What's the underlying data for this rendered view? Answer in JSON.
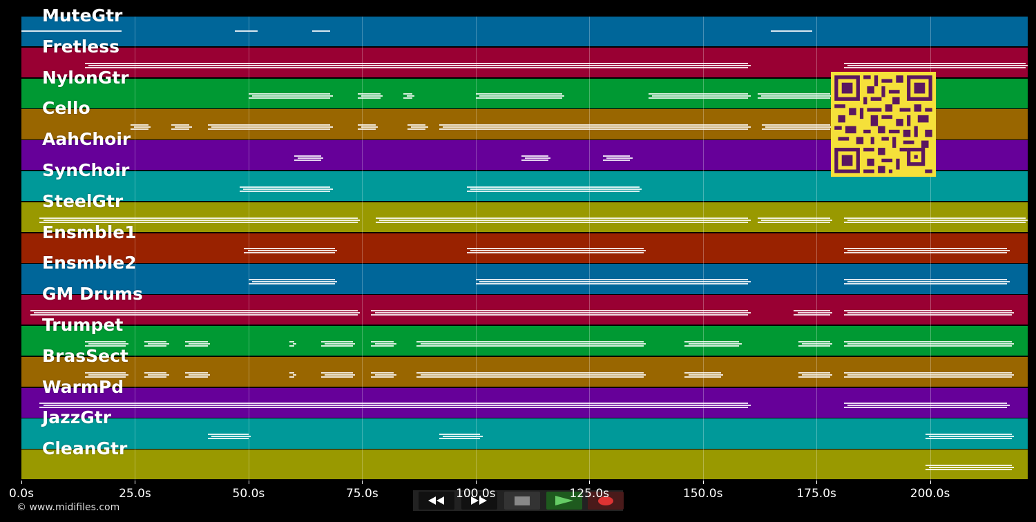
{
  "tracks": [
    {
      "name": "MuteGtr",
      "color": "#006699",
      "notes": [
        [
          0,
          22,
          "top"
        ],
        [
          47,
          52,
          "top"
        ],
        [
          64,
          68,
          "top"
        ],
        [
          165,
          174,
          "top"
        ]
      ]
    },
    {
      "name": "Fretless",
      "color": "#990033",
      "notes": [
        [
          14,
          160,
          "mid"
        ],
        [
          181,
          221,
          "mid"
        ]
      ]
    },
    {
      "name": "NylonGtr",
      "color": "#009933",
      "notes": [
        [
          50,
          68,
          "mid"
        ],
        [
          74,
          79,
          "mid"
        ],
        [
          84,
          86,
          "mid"
        ],
        [
          100,
          119,
          "mid"
        ],
        [
          138,
          160,
          "mid"
        ],
        [
          162,
          178,
          "mid"
        ]
      ]
    },
    {
      "name": "Cello",
      "color": "#996600",
      "notes": [
        [
          24,
          28,
          "mid"
        ],
        [
          33,
          37,
          "mid"
        ],
        [
          41,
          68,
          "mid"
        ],
        [
          74,
          78,
          "mid"
        ],
        [
          85,
          89,
          "mid"
        ],
        [
          92,
          160,
          "mid"
        ],
        [
          163,
          178,
          "mid"
        ]
      ]
    },
    {
      "name": "AahChoir",
      "color": "#660099",
      "notes": [
        [
          60,
          66,
          "mid"
        ],
        [
          110,
          116,
          "mid"
        ],
        [
          128,
          134,
          "mid"
        ]
      ]
    },
    {
      "name": "SynChoir",
      "color": "#009999",
      "notes": [
        [
          48,
          68,
          "mid"
        ],
        [
          98,
          136,
          "mid"
        ]
      ]
    },
    {
      "name": "SteelGtr",
      "color": "#999900",
      "notes": [
        [
          4,
          74,
          "mid"
        ],
        [
          78,
          160,
          "mid"
        ],
        [
          162,
          178,
          "mid"
        ],
        [
          181,
          221,
          "mid"
        ]
      ]
    },
    {
      "name": "Ensmble1",
      "color": "#992200",
      "notes": [
        [
          49,
          69,
          "mid"
        ],
        [
          98,
          137,
          "mid"
        ],
        [
          181,
          217,
          "mid"
        ]
      ]
    },
    {
      "name": "Ensmble2",
      "color": "#006699",
      "notes": [
        [
          50,
          69,
          "mid"
        ],
        [
          100,
          160,
          "mid"
        ],
        [
          181,
          217,
          "mid"
        ]
      ]
    },
    {
      "name": "GM Drums",
      "color": "#990033",
      "notes": [
        [
          2,
          74,
          "mid"
        ],
        [
          77,
          160,
          "mid"
        ],
        [
          170,
          178,
          "mid"
        ],
        [
          181,
          218,
          "mid"
        ]
      ]
    },
    {
      "name": "Trumpet",
      "color": "#009933",
      "notes": [
        [
          14,
          23,
          "mid"
        ],
        [
          27,
          32,
          "mid"
        ],
        [
          36,
          41,
          "mid"
        ],
        [
          59,
          60,
          "mid"
        ],
        [
          66,
          73,
          "mid"
        ],
        [
          77,
          82,
          "mid"
        ],
        [
          87,
          137,
          "mid"
        ],
        [
          146,
          158,
          "mid"
        ],
        [
          171,
          178,
          "mid"
        ],
        [
          181,
          218,
          "mid"
        ]
      ]
    },
    {
      "name": "BrasSect",
      "color": "#996600",
      "notes": [
        [
          14,
          23,
          "mid"
        ],
        [
          27,
          32,
          "mid"
        ],
        [
          36,
          41,
          "mid"
        ],
        [
          59,
          60,
          "mid"
        ],
        [
          66,
          73,
          "mid"
        ],
        [
          77,
          82,
          "mid"
        ],
        [
          87,
          137,
          "mid"
        ],
        [
          146,
          154,
          "mid"
        ],
        [
          171,
          178,
          "mid"
        ],
        [
          181,
          218,
          "mid"
        ]
      ]
    },
    {
      "name": "WarmPd",
      "color": "#660099",
      "notes": [
        [
          4,
          160,
          "mid"
        ],
        [
          181,
          217,
          "mid"
        ]
      ]
    },
    {
      "name": "JazzGtr",
      "color": "#009999",
      "notes": [
        [
          41,
          50,
          "mid"
        ],
        [
          92,
          101,
          "mid"
        ],
        [
          199,
          218,
          "mid"
        ]
      ]
    },
    {
      "name": "CleanGtr",
      "color": "#999900",
      "notes": [
        [
          199,
          218,
          "mid"
        ]
      ]
    }
  ],
  "axis": {
    "min_seconds": 0,
    "max_seconds": 221.5,
    "ticks": [
      {
        "v": 0,
        "label": "0.0s"
      },
      {
        "v": 25,
        "label": "25.0s"
      },
      {
        "v": 50,
        "label": "50.0s"
      },
      {
        "v": 75,
        "label": "75.0s"
      },
      {
        "v": 100,
        "label": "100.0s"
      },
      {
        "v": 125,
        "label": "125.0s"
      },
      {
        "v": 150,
        "label": "150.0s"
      },
      {
        "v": 175,
        "label": "175.0s"
      },
      {
        "v": 200,
        "label": "200.0s"
      }
    ]
  },
  "copyright": "© www.midifiles.com",
  "transport": {
    "rewind": {
      "icon": "rewind-icon"
    },
    "fast_forward": {
      "icon": "fast-forward-icon"
    },
    "stop": {
      "icon": "stop-icon",
      "color": "#888888"
    },
    "play": {
      "icon": "play-icon",
      "color": "#66cc66"
    },
    "record": {
      "icon": "record-icon",
      "color": "#dd3333"
    }
  },
  "qr_code": {
    "icon": "qr-code-icon",
    "color": "#f5e03a"
  }
}
